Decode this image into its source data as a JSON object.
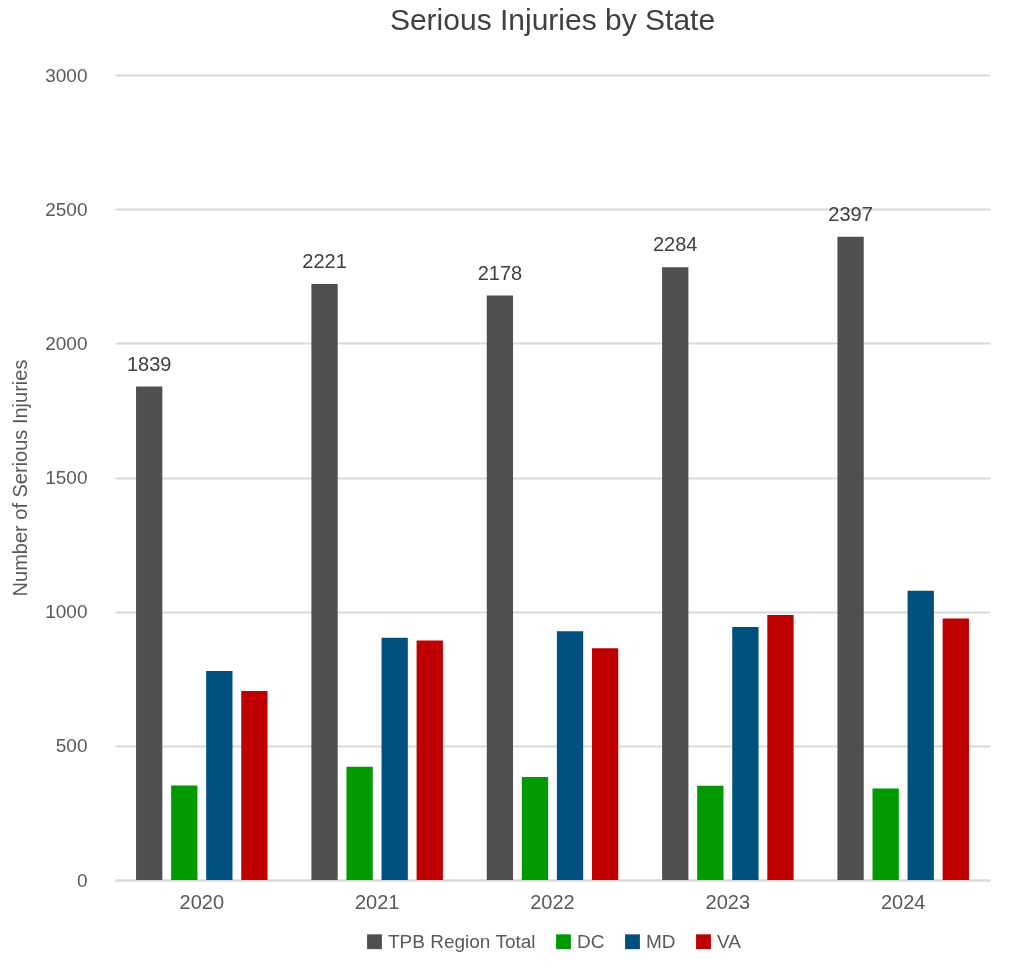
{
  "chart_data": {
    "type": "bar",
    "title": "Serious Injuries by State",
    "ylabel": "Number of Serious Injuries",
    "categories": [
      "2020",
      "2021",
      "2022",
      "2023",
      "2024"
    ],
    "series": [
      {
        "name": "TPB Region Total",
        "color": "#4f4f4f",
        "values": [
          1839,
          2221,
          2178,
          2284,
          2397
        ],
        "value_labels": [
          "1839",
          "2221",
          "2178",
          "2284",
          "2397"
        ]
      },
      {
        "name": "DC",
        "color": "#009900",
        "values": [
          352,
          422,
          384,
          351,
          341
        ]
      },
      {
        "name": "MD",
        "color": "#00507e",
        "values": [
          779,
          903,
          927,
          943,
          1078
        ]
      },
      {
        "name": "VA",
        "color": "#c00000",
        "values": [
          704,
          893,
          864,
          988,
          975
        ]
      }
    ],
    "ylim": [
      0,
      3000
    ],
    "yticks": [
      0,
      500,
      1000,
      1500,
      2000,
      2500,
      3000
    ],
    "grid": "y",
    "legend": "bottom"
  }
}
